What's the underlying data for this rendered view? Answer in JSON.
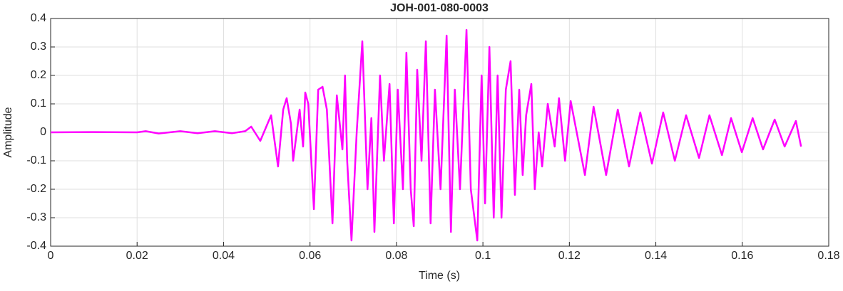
{
  "chart_data": {
    "type": "line",
    "title": "JOH-001-080-0003",
    "xlabel": "Time (s)",
    "ylabel": "Amplitude",
    "x": [
      0,
      0.01,
      0.02,
      0.022,
      0.025,
      0.03,
      0.034,
      0.038,
      0.042,
      0.045,
      0.0464,
      0.0485,
      0.051,
      0.0526,
      0.0538,
      0.0546,
      0.0556,
      0.0561,
      0.0576,
      0.0584,
      0.0589,
      0.0596,
      0.0609,
      0.0619,
      0.0629,
      0.0639,
      0.0652,
      0.0662,
      0.0675,
      0.0681,
      0.0686,
      0.0696,
      0.0708,
      0.0721,
      0.0733,
      0.0742,
      0.0749,
      0.0762,
      0.0771,
      0.0784,
      0.0794,
      0.0803,
      0.0815,
      0.0823,
      0.0833,
      0.084,
      0.0848,
      0.0858,
      0.0868,
      0.0879,
      0.0889,
      0.0902,
      0.0916,
      0.0926,
      0.0935,
      0.0947,
      0.0962,
      0.0972,
      0.0987,
      0.0997,
      0.1005,
      0.1015,
      0.1025,
      0.1034,
      0.1043,
      0.1053,
      0.1064,
      0.1074,
      0.1084,
      0.1092,
      0.11,
      0.1112,
      0.112,
      0.1129,
      0.1137,
      0.115,
      0.1166,
      0.1176,
      0.119,
      0.1203,
      0.1236,
      0.1256,
      0.1285,
      0.1312,
      0.1338,
      0.1364,
      0.1391,
      0.1417,
      0.1444,
      0.147,
      0.15,
      0.1524,
      0.1553,
      0.1574,
      0.1599,
      0.1624,
      0.1648,
      0.1675,
      0.1698,
      0.1724,
      0.1736
    ],
    "series": [
      {
        "name": "Amplitude",
        "color": "#ff00ff",
        "values": [
          0,
          0.001,
          0,
          0.004,
          -0.004,
          0.004,
          -0.003,
          0.004,
          -0.003,
          0.004,
          0.02,
          -0.03,
          0.06,
          -0.12,
          0.08,
          0.12,
          0.03,
          -0.1,
          0.08,
          -0.05,
          0.14,
          0.1,
          -0.27,
          0.15,
          0.16,
          0.08,
          -0.32,
          0.13,
          -0.06,
          0.2,
          -0.1,
          -0.38,
          0,
          0.32,
          -0.2,
          0.05,
          -0.35,
          0.2,
          -0.1,
          0.17,
          -0.32,
          0.15,
          -0.2,
          0.28,
          -0.2,
          -0.33,
          0.22,
          -0.1,
          0.32,
          -0.32,
          0.15,
          -0.2,
          0.34,
          -0.35,
          0.15,
          -0.2,
          0.36,
          -0.2,
          -0.38,
          0.2,
          -0.25,
          0.3,
          -0.3,
          0.2,
          -0.3,
          0.15,
          0.25,
          -0.22,
          0.15,
          -0.15,
          0.06,
          0.17,
          -0.2,
          0,
          -0.12,
          0.1,
          -0.05,
          0.12,
          -0.1,
          0.11,
          -0.15,
          0.09,
          -0.15,
          0.08,
          -0.12,
          0.07,
          -0.11,
          0.07,
          -0.1,
          0.06,
          -0.09,
          0.06,
          -0.08,
          0.05,
          -0.07,
          0.05,
          -0.06,
          0.045,
          -0.05,
          0.04,
          -0.05
        ]
      }
    ],
    "xlim": [
      0,
      0.18
    ],
    "xticks": [
      0,
      0.02,
      0.04,
      0.06,
      0.08,
      0.1,
      0.12,
      0.14,
      0.16,
      0.18
    ],
    "ylim": [
      -0.4,
      0.4
    ],
    "yticks": [
      -0.4,
      -0.3,
      -0.2,
      -0.1,
      0,
      0.1,
      0.2,
      0.3,
      0.4
    ],
    "grid": true
  }
}
